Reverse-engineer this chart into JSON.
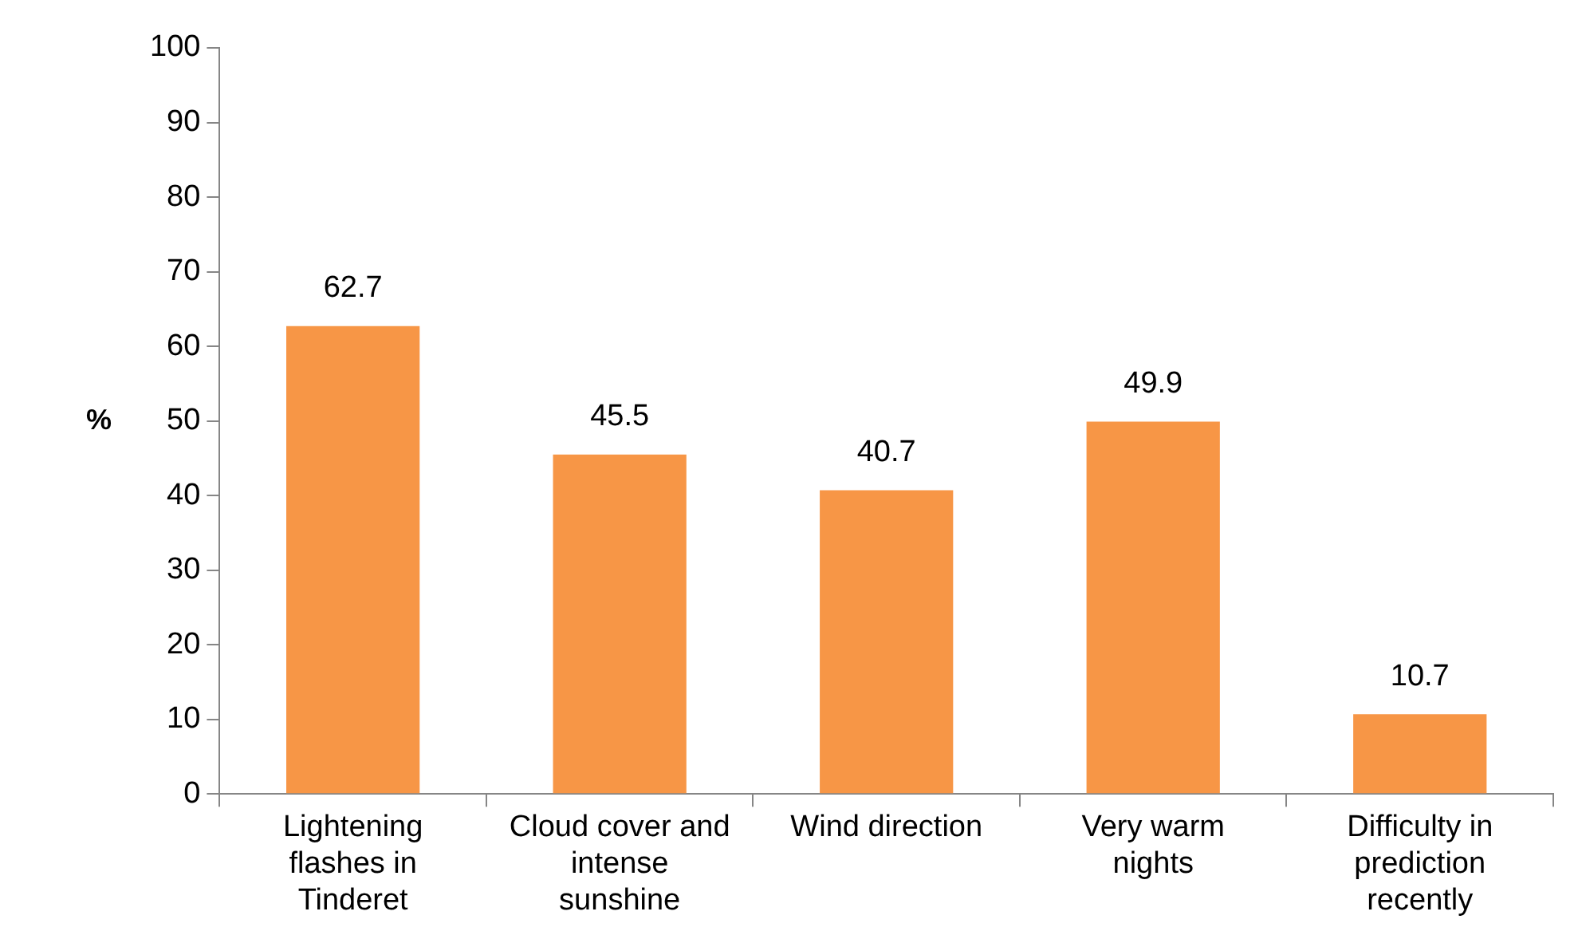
{
  "chart_data": {
    "type": "bar",
    "ylabel": "%",
    "categories": [
      "Lightening flashes in Tinderet",
      "Cloud cover and intense sunshine",
      "Wind direction",
      "Very warm nights",
      "Difficulty in prediction recently"
    ],
    "values": [
      62.7,
      45.5,
      40.7,
      49.9,
      10.7
    ],
    "color": "#f79646",
    "ylim": [
      0,
      100
    ],
    "yticks": [
      0,
      10,
      20,
      30,
      40,
      50,
      60,
      70,
      80,
      90,
      100
    ],
    "grid": false,
    "legend": false,
    "data_labels": true
  }
}
